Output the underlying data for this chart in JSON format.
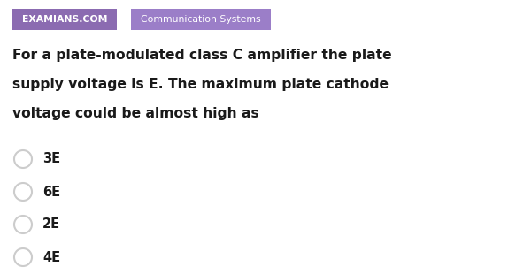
{
  "bg_color": "#ffffff",
  "tag1_text": "EXAMIANS.COM",
  "tag1_bg": "#8b6bb1",
  "tag1_fg": "#ffffff",
  "tag2_text": "Communication Systems",
  "tag2_bg": "#9b7ec8",
  "tag2_fg": "#ffffff",
  "question_lines": [
    "For a plate-modulated class C amplifier the plate",
    "supply voltage is E. The maximum plate cathode",
    "voltage could be almost high as"
  ],
  "question_color": "#1a1a1a",
  "options": [
    "3E",
    "6E",
    "2E",
    "4E"
  ],
  "option_color": "#1a1a1a",
  "circle_edge": "#cccccc",
  "circle_face": "#ffffff"
}
